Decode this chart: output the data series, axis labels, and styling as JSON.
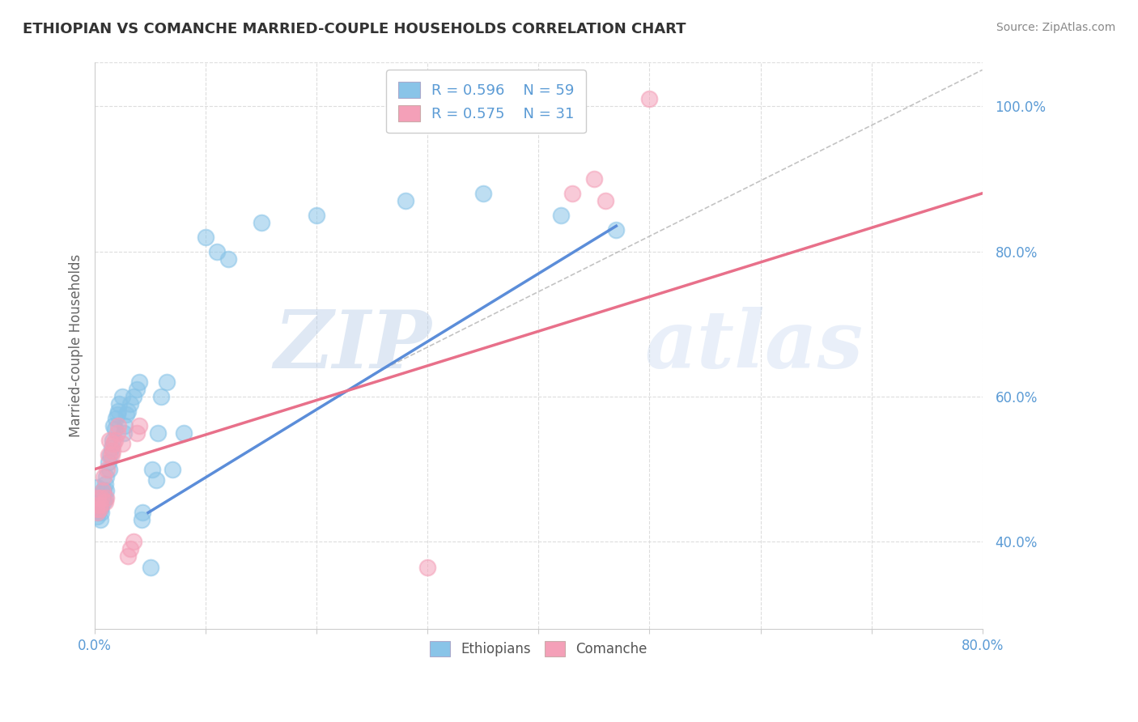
{
  "title": "ETHIOPIAN VS COMANCHE MARRIED-COUPLE HOUSEHOLDS CORRELATION CHART",
  "source": "Source: ZipAtlas.com",
  "ylabel": "Married-couple Households",
  "yticklabels": [
    "40.0%",
    "60.0%",
    "80.0%",
    "100.0%"
  ],
  "yticks": [
    0.4,
    0.6,
    0.8,
    1.0
  ],
  "xlim": [
    0.0,
    0.8
  ],
  "ylim": [
    0.28,
    1.06
  ],
  "legend_r1": "R = 0.596",
  "legend_n1": "N = 59",
  "legend_r2": "R = 0.575",
  "legend_n2": "N = 31",
  "blue_color": "#89C4E8",
  "pink_color": "#F4A0B8",
  "blue_line_color": "#5B8DD9",
  "pink_line_color": "#E8708A",
  "blue_scatter": [
    [
      0.001,
      0.445
    ],
    [
      0.001,
      0.455
    ],
    [
      0.002,
      0.435
    ],
    [
      0.002,
      0.475
    ],
    [
      0.003,
      0.44
    ],
    [
      0.003,
      0.455
    ],
    [
      0.004,
      0.45
    ],
    [
      0.004,
      0.46
    ],
    [
      0.005,
      0.43
    ],
    [
      0.005,
      0.445
    ],
    [
      0.006,
      0.44
    ],
    [
      0.006,
      0.45
    ],
    [
      0.007,
      0.46
    ],
    [
      0.007,
      0.47
    ],
    [
      0.008,
      0.455
    ],
    [
      0.008,
      0.47
    ],
    [
      0.009,
      0.46
    ],
    [
      0.009,
      0.48
    ],
    [
      0.01,
      0.47
    ],
    [
      0.01,
      0.49
    ],
    [
      0.012,
      0.51
    ],
    [
      0.013,
      0.5
    ],
    [
      0.014,
      0.52
    ],
    [
      0.015,
      0.53
    ],
    [
      0.016,
      0.54
    ],
    [
      0.017,
      0.56
    ],
    [
      0.018,
      0.555
    ],
    [
      0.019,
      0.57
    ],
    [
      0.02,
      0.575
    ],
    [
      0.021,
      0.58
    ],
    [
      0.022,
      0.59
    ],
    [
      0.025,
      0.6
    ],
    [
      0.026,
      0.55
    ],
    [
      0.027,
      0.56
    ],
    [
      0.028,
      0.575
    ],
    [
      0.03,
      0.58
    ],
    [
      0.032,
      0.59
    ],
    [
      0.035,
      0.6
    ],
    [
      0.038,
      0.61
    ],
    [
      0.04,
      0.62
    ],
    [
      0.042,
      0.43
    ],
    [
      0.043,
      0.44
    ],
    [
      0.05,
      0.365
    ],
    [
      0.052,
      0.5
    ],
    [
      0.055,
      0.485
    ],
    [
      0.057,
      0.55
    ],
    [
      0.06,
      0.6
    ],
    [
      0.065,
      0.62
    ],
    [
      0.07,
      0.5
    ],
    [
      0.08,
      0.55
    ],
    [
      0.1,
      0.82
    ],
    [
      0.11,
      0.8
    ],
    [
      0.12,
      0.79
    ],
    [
      0.15,
      0.84
    ],
    [
      0.2,
      0.85
    ],
    [
      0.28,
      0.87
    ],
    [
      0.35,
      0.88
    ],
    [
      0.42,
      0.85
    ],
    [
      0.47,
      0.83
    ]
  ],
  "pink_scatter": [
    [
      0.001,
      0.445
    ],
    [
      0.002,
      0.45
    ],
    [
      0.002,
      0.44
    ],
    [
      0.003,
      0.46
    ],
    [
      0.004,
      0.445
    ],
    [
      0.005,
      0.45
    ],
    [
      0.006,
      0.46
    ],
    [
      0.007,
      0.47
    ],
    [
      0.008,
      0.49
    ],
    [
      0.009,
      0.455
    ],
    [
      0.01,
      0.46
    ],
    [
      0.011,
      0.5
    ],
    [
      0.012,
      0.52
    ],
    [
      0.013,
      0.54
    ],
    [
      0.015,
      0.52
    ],
    [
      0.016,
      0.525
    ],
    [
      0.017,
      0.535
    ],
    [
      0.018,
      0.54
    ],
    [
      0.02,
      0.55
    ],
    [
      0.021,
      0.56
    ],
    [
      0.025,
      0.535
    ],
    [
      0.03,
      0.38
    ],
    [
      0.032,
      0.39
    ],
    [
      0.035,
      0.4
    ],
    [
      0.038,
      0.55
    ],
    [
      0.04,
      0.56
    ],
    [
      0.3,
      0.365
    ],
    [
      0.43,
      0.88
    ],
    [
      0.45,
      0.9
    ],
    [
      0.46,
      0.87
    ],
    [
      0.5,
      1.01
    ]
  ],
  "blue_trendline": [
    [
      0.048,
      0.44
    ],
    [
      0.47,
      0.835
    ]
  ],
  "pink_trendline": [
    [
      0.0,
      0.5
    ],
    [
      0.8,
      0.88
    ]
  ],
  "ref_line": [
    [
      0.25,
      0.63
    ],
    [
      0.8,
      1.05
    ]
  ],
  "watermark_zip": "ZIP",
  "watermark_atlas": "atlas",
  "background_color": "#FFFFFF",
  "grid_color": "#DDDDDD"
}
